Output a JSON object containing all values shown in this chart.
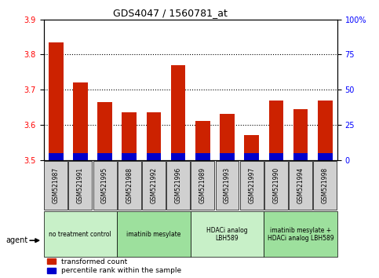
{
  "title": "GDS4047 / 1560781_at",
  "samples": [
    "GSM521987",
    "GSM521991",
    "GSM521995",
    "GSM521988",
    "GSM521992",
    "GSM521996",
    "GSM521989",
    "GSM521993",
    "GSM521997",
    "GSM521990",
    "GSM521994",
    "GSM521998"
  ],
  "transformed_counts": [
    3.835,
    3.72,
    3.665,
    3.635,
    3.635,
    3.77,
    3.61,
    3.63,
    3.57,
    3.67,
    3.645,
    3.67
  ],
  "blue_pct": [
    5,
    5,
    5,
    5,
    5,
    5,
    5,
    5,
    5,
    5,
    5,
    5
  ],
  "bar_base": 3.5,
  "ylim_left": [
    3.5,
    3.9
  ],
  "ylim_right": [
    0,
    100
  ],
  "yticks_left": [
    3.5,
    3.6,
    3.7,
    3.8,
    3.9
  ],
  "yticks_right": [
    0,
    25,
    50,
    75,
    100
  ],
  "ytick_labels_right": [
    "0",
    "25",
    "50",
    "75",
    "100%"
  ],
  "grid_ticks": [
    3.6,
    3.7,
    3.8
  ],
  "groups": [
    {
      "label": "no treatment control",
      "start": 0,
      "end": 3
    },
    {
      "label": "imatinib mesylate",
      "start": 3,
      "end": 6
    },
    {
      "label": "HDACi analog\nLBH589",
      "start": 6,
      "end": 9
    },
    {
      "label": "imatinib mesylate +\nHDACi analog LBH589",
      "start": 9,
      "end": 12
    }
  ],
  "group_colors": [
    "#c8f0c8",
    "#9de09d",
    "#c8f0c8",
    "#9de09d"
  ],
  "bar_color_red": "#cc2200",
  "bar_color_blue": "#0000cc",
  "bar_width": 0.6,
  "sample_box_color": "#d0d0d0",
  "legend_labels": [
    "transformed count",
    "percentile rank within the sample"
  ],
  "agent_label": "agent"
}
